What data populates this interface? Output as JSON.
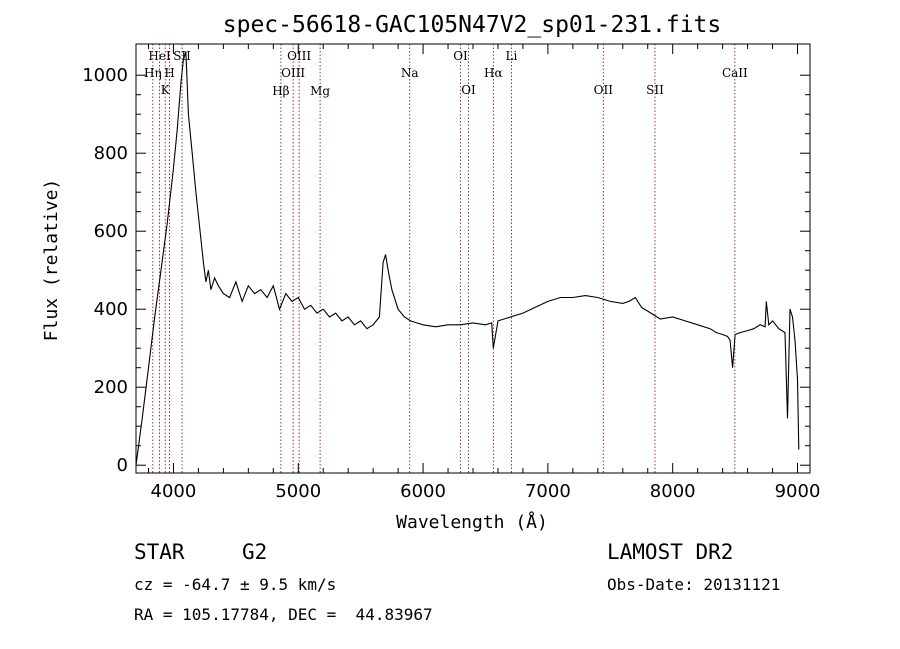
{
  "chart_data": {
    "type": "line",
    "title": "spec-56618-GAC105N47V2_sp01-231.fits",
    "xlabel": "Wavelength (Å)",
    "ylabel": "Flux (relative)",
    "xlim": [
      3700,
      9100
    ],
    "ylim": [
      -20,
      1080
    ],
    "x_ticks": [
      "4000",
      "5000",
      "6000",
      "7000",
      "8000",
      "9000"
    ],
    "y_ticks": [
      "0",
      "200",
      "400",
      "600",
      "800",
      "1000"
    ],
    "grid": false,
    "series": [
      {
        "x": [
          3700,
          3750,
          3800,
          3850,
          3900,
          3950,
          4000,
          4030,
          4060,
          4080,
          4100,
          4120,
          4150,
          4180,
          4200,
          4220,
          4240,
          4260,
          4280,
          4300,
          4330,
          4360,
          4400,
          4450,
          4500,
          4550,
          4600,
          4650,
          4700,
          4750,
          4800,
          4850,
          4900,
          4950,
          5000,
          5050,
          5100,
          5150,
          5200,
          5250,
          5300,
          5350,
          5400,
          5450,
          5500,
          5550,
          5600,
          5650,
          5680,
          5700,
          5720,
          5750,
          5800,
          5850,
          5900,
          5950,
          6000,
          6100,
          6200,
          6300,
          6400,
          6500,
          6550,
          6563,
          6600,
          6700,
          6800,
          6900,
          7000,
          7100,
          7200,
          7300,
          7400,
          7500,
          7600,
          7650,
          7700,
          7750,
          7800,
          7900,
          8000,
          8100,
          8200,
          8300,
          8350,
          8400,
          8440,
          8460,
          8480,
          8500,
          8540,
          8600,
          8650,
          8700,
          8740,
          8750,
          8770,
          8800,
          8850,
          8900,
          8920,
          8940,
          8960,
          8980,
          9000,
          9010
        ],
        "y": [
          0,
          120,
          250,
          380,
          500,
          620,
          760,
          860,
          980,
          1040,
          1060,
          900,
          800,
          700,
          640,
          580,
          520,
          470,
          500,
          450,
          480,
          460,
          440,
          430,
          470,
          420,
          460,
          440,
          450,
          430,
          460,
          400,
          440,
          420,
          430,
          400,
          410,
          390,
          400,
          380,
          390,
          370,
          380,
          360,
          370,
          350,
          360,
          380,
          520,
          540,
          500,
          450,
          400,
          380,
          370,
          365,
          360,
          355,
          360,
          360,
          365,
          360,
          365,
          300,
          370,
          380,
          390,
          405,
          420,
          430,
          430,
          435,
          430,
          420,
          415,
          420,
          430,
          405,
          395,
          375,
          380,
          370,
          360,
          350,
          340,
          335,
          330,
          320,
          250,
          335,
          340,
          345,
          350,
          360,
          355,
          420,
          360,
          370,
          350,
          340,
          120,
          400,
          380,
          320,
          220,
          40
        ]
      }
    ],
    "line_markers": [
      {
        "x": 3889,
        "label": "HeI",
        "row": 0
      },
      {
        "x": 3835,
        "label": "Hη",
        "row": 1
      },
      {
        "x": 3934,
        "label": "K",
        "row": 2
      },
      {
        "x": 3969,
        "label": "H",
        "row": 1
      },
      {
        "x": 4069,
        "label": "SII",
        "row": 0
      },
      {
        "x": 4861,
        "label": "Hβ",
        "row": 3
      },
      {
        "x": 4959,
        "label": "OIII",
        "row": 1
      },
      {
        "x": 5007,
        "label": "OIII",
        "row": 0
      },
      {
        "x": 5175,
        "label": "Mg",
        "row": 3
      },
      {
        "x": 5893,
        "label": "Na",
        "row": 1
      },
      {
        "x": 6300,
        "label": "OI",
        "row": 0
      },
      {
        "x": 6364,
        "label": "OI",
        "row": 2
      },
      {
        "x": 6563,
        "label": "Hα",
        "row": 1
      },
      {
        "x": 6708,
        "label": "Li",
        "row": 0
      },
      {
        "x": 7444,
        "label": "OII",
        "row": 2
      },
      {
        "x": 7858,
        "label": "SII",
        "row": 2
      },
      {
        "x": 8498,
        "label": "CaII",
        "row": 1
      }
    ]
  },
  "info": {
    "class": "STAR",
    "subclass": "G2",
    "survey": "LAMOST DR2",
    "cz": "cz = -64.7 ± 9.5 km/s",
    "obs_date": "Obs-Date: 20131121",
    "coords": "RA = 105.17784, DEC =  44.83967"
  },
  "colors": {
    "spectrum": "#000000",
    "marker_line": "#8b0000",
    "axes": "#000000"
  }
}
